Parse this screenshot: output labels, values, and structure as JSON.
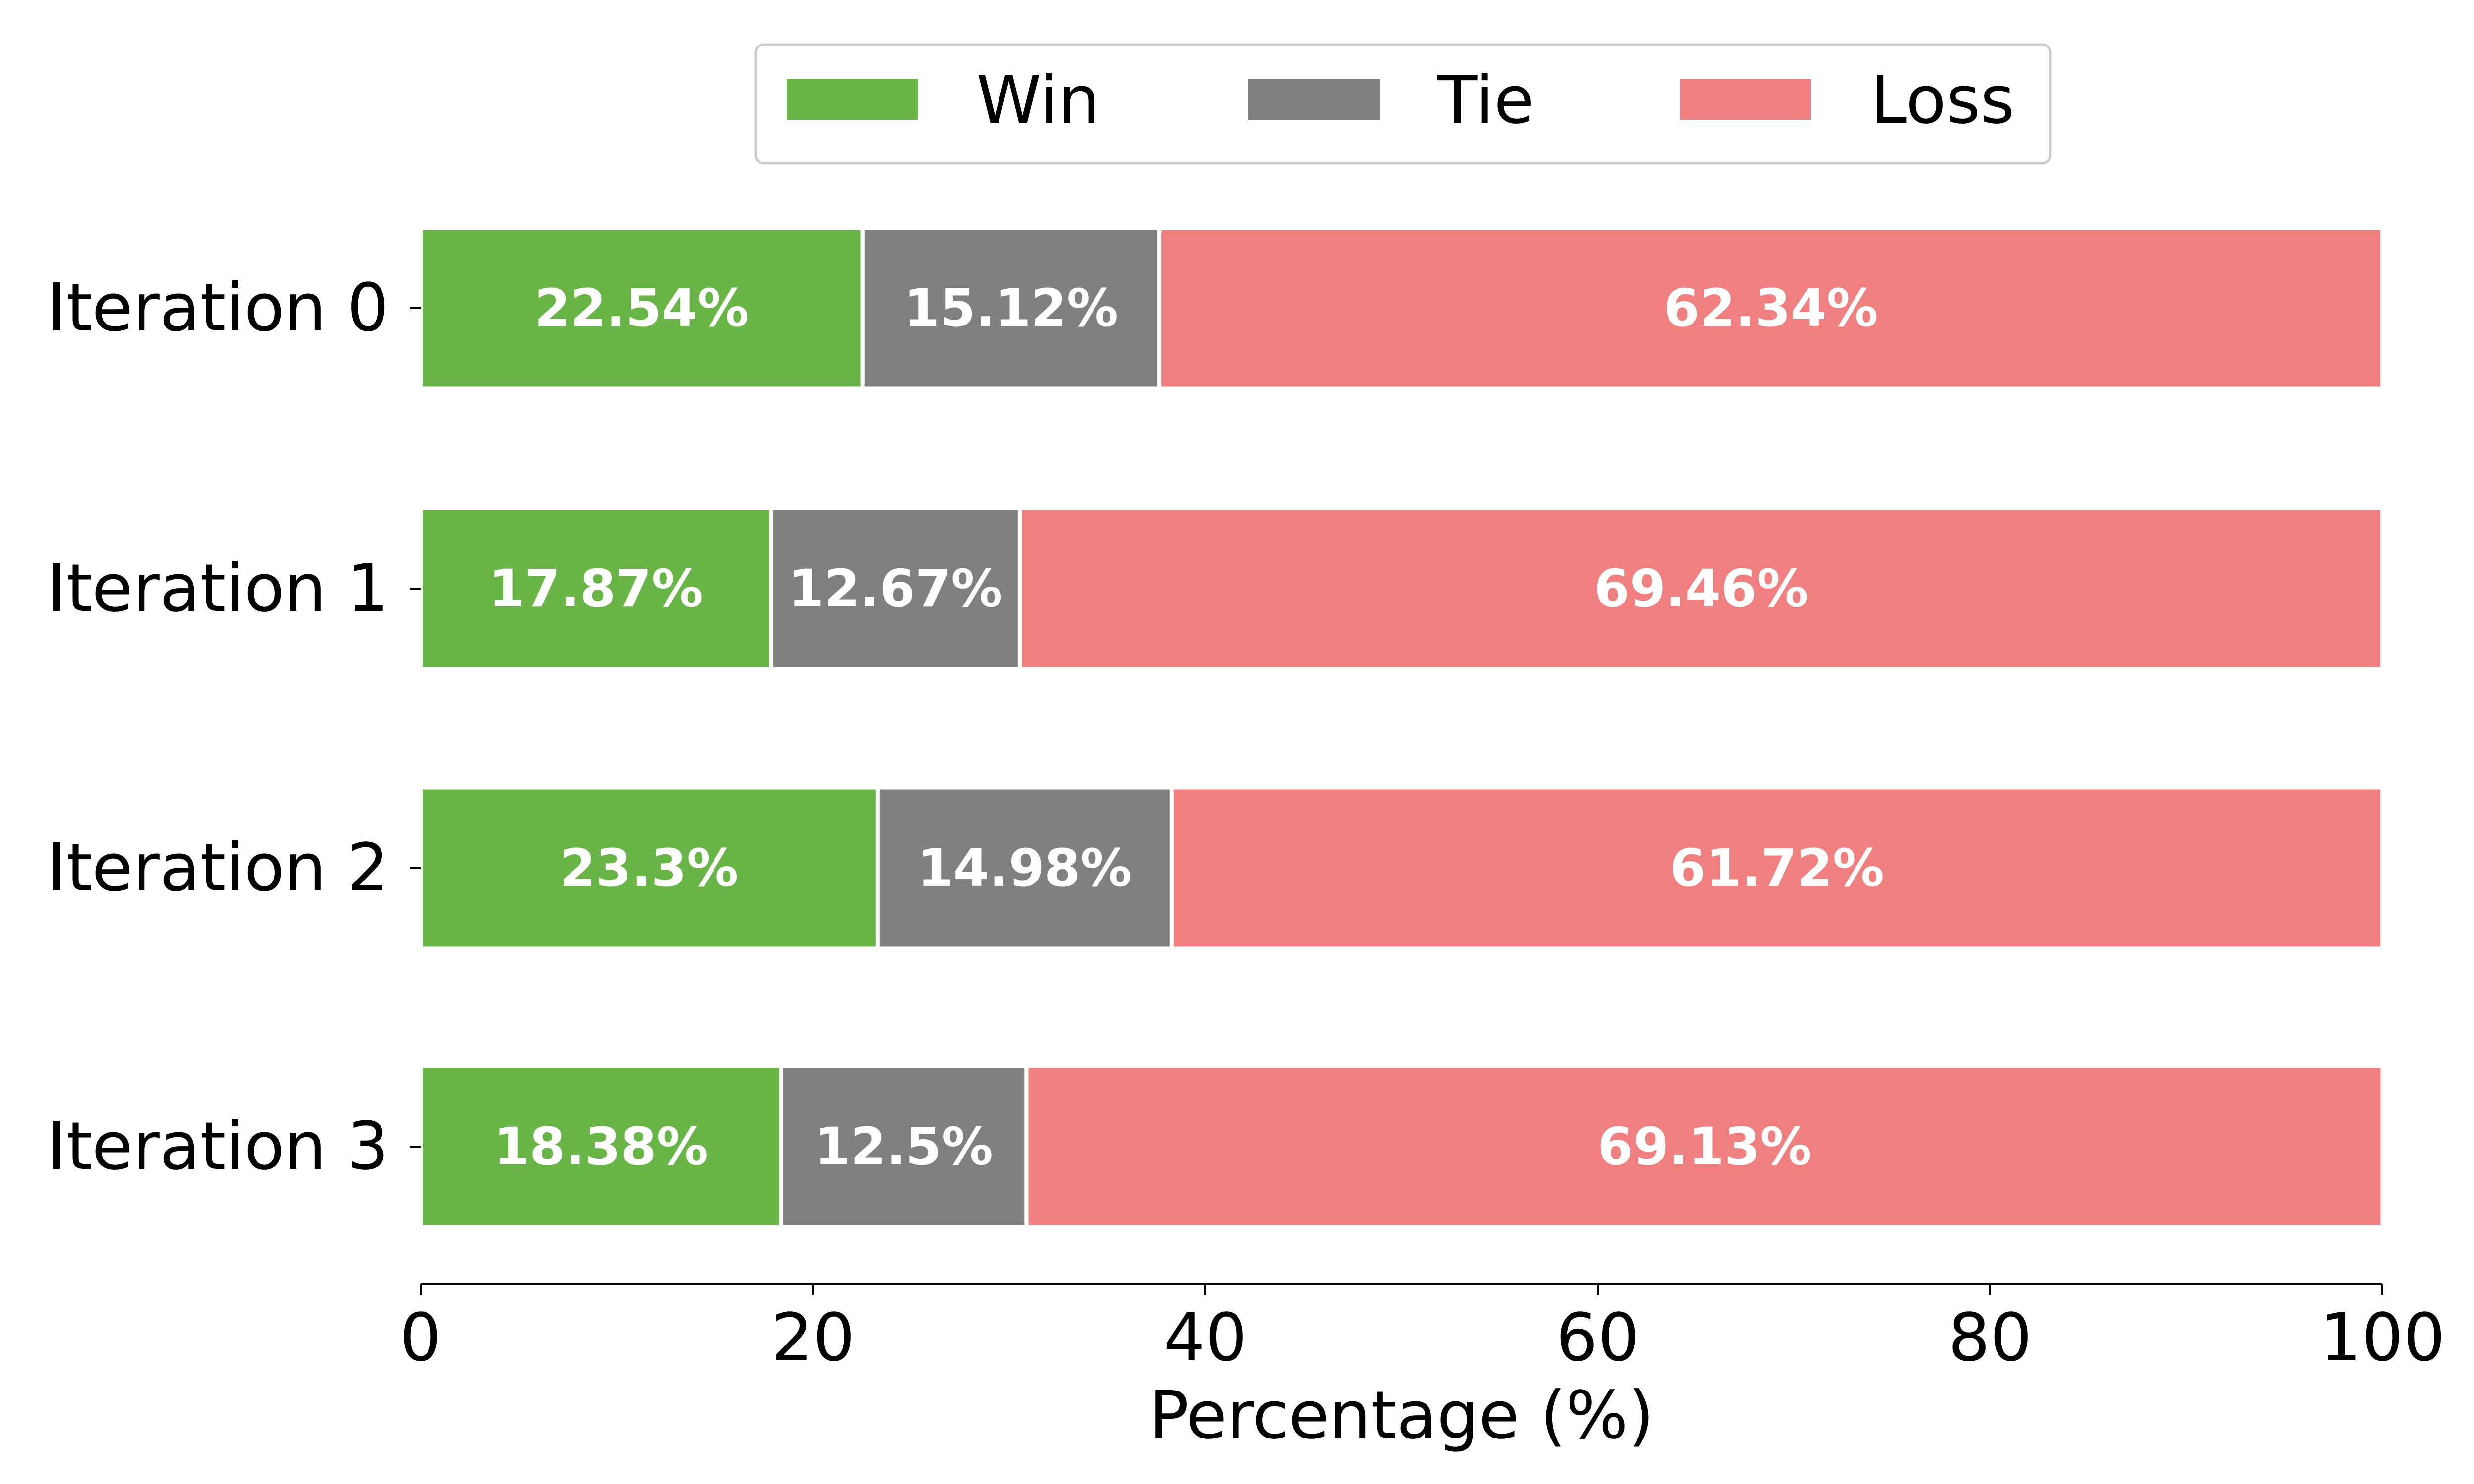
{
  "chart_data": {
    "type": "bar",
    "orientation": "horizontal",
    "stacked": true,
    "title": "",
    "xlabel": "Percentage (%)",
    "ylabel": "",
    "xlim": [
      0,
      100
    ],
    "xticks": [
      0,
      20,
      40,
      60,
      80,
      100
    ],
    "grid": false,
    "legend_position": "top-center",
    "categories": [
      "Iteration 0",
      "Iteration 1",
      "Iteration 2",
      "Iteration 3"
    ],
    "series": [
      {
        "name": "Win",
        "color": "#6ab547",
        "values": [
          22.54,
          17.87,
          23.3,
          18.38
        ],
        "labels": [
          "22.54%",
          "17.87%",
          "23.3%",
          "18.38%"
        ]
      },
      {
        "name": "Tie",
        "color": "#808080",
        "values": [
          15.12,
          12.67,
          14.98,
          12.5
        ],
        "labels": [
          "15.12%",
          "12.67%",
          "14.98%",
          "12.5%"
        ]
      },
      {
        "name": "Loss",
        "color": "#f08080",
        "values": [
          62.34,
          69.46,
          61.72,
          69.13
        ],
        "labels": [
          "62.34%",
          "69.46%",
          "61.72%",
          "69.13%"
        ]
      }
    ]
  }
}
